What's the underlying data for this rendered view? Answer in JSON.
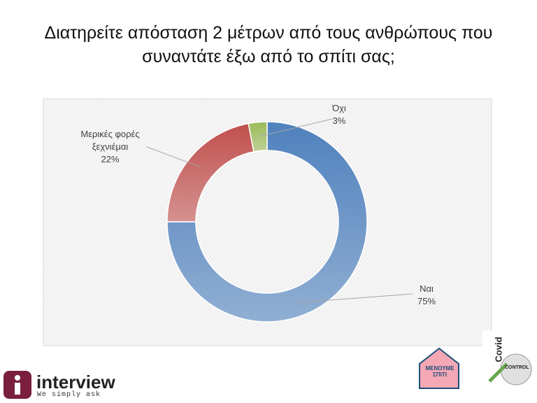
{
  "chart_data": {
    "type": "donut",
    "title": "Διατηρείτε απόσταση 2 μέτρων από τους ανθρώπους που συναντάτε έξω από το σπίτι σας;",
    "categories": [
      "Ναι",
      "Μερικές φορές ξεχνιέμαι",
      "Όχι"
    ],
    "values": [
      75,
      22,
      3
    ],
    "value_labels": [
      "75%",
      "22%",
      "3%"
    ],
    "colors": [
      "#4f81bd",
      "#c0504d",
      "#9bbb59"
    ]
  },
  "logos": {
    "brand": "interview",
    "slogan": "We simply ask",
    "stay_home": "ΜΕΝΟΥΜΕ ΣΠΙΤΙ",
    "covid": "Covid",
    "control": "CONTROL"
  }
}
